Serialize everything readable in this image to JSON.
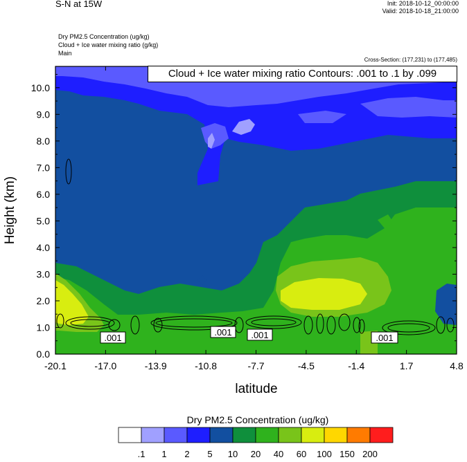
{
  "header": {
    "title": "S-N at 15W",
    "init": "Init: 2018-10-12_00:00:00",
    "valid": "Valid: 2018-10-18_21:00:00",
    "variables": [
      "Dry PM2.5 Concentration   (ug/kg)",
      "Cloud + Ice water mixing ratio   (g/kg)",
      "Main"
    ],
    "cross_section": "Cross-Section: (177,231) to (177,485)",
    "contour_info": "Cloud + Ice water mixing ratio Contours: .001 to .1 by .099"
  },
  "chart_data": {
    "type": "heatmap",
    "xlabel": "latitude",
    "ylabel": "Height (km)",
    "x_ticks": [
      "-20.1",
      "-17.0",
      "-13.9",
      "-10.8",
      "-7.7",
      "-4.5",
      "-1.4",
      "1.7",
      "4.8"
    ],
    "y_ticks": [
      "0.0",
      "1.0",
      "2.0",
      "3.0",
      "4.0",
      "5.0",
      "6.0",
      "7.0",
      "8.0",
      "9.0",
      "10.0"
    ],
    "xlim": [
      -20.1,
      4.8
    ],
    "ylim": [
      0,
      10.8
    ],
    "colorbar": {
      "title": "Dry PM2.5 Concentration  (ug/kg)",
      "levels": [
        ".1",
        "1",
        "2",
        "5",
        "10",
        "20",
        "40",
        "60",
        "100",
        "150",
        "200"
      ],
      "colors": [
        "#ffffff",
        "#a0a0ff",
        "#5a5aff",
        "#1e1eff",
        "#124fa0",
        "#0f8f3c",
        "#2fb21d",
        "#79c41a",
        "#d8ed10",
        "#ffd700",
        "#ff7b00",
        "#ff1d1d"
      ]
    },
    "contour_labels": [
      ".001",
      ".001",
      ".001",
      ".001"
    ]
  },
  "colors": {
    "blue_mid": "#1e1eff",
    "blue_dark": "#124fa0",
    "blue_light": "#5a5aff",
    "lavender": "#a0a0ff",
    "green_dark": "#0f8f3c",
    "green": "#2fb21d",
    "green_light": "#79c41a",
    "yellow": "#d8ed10"
  }
}
